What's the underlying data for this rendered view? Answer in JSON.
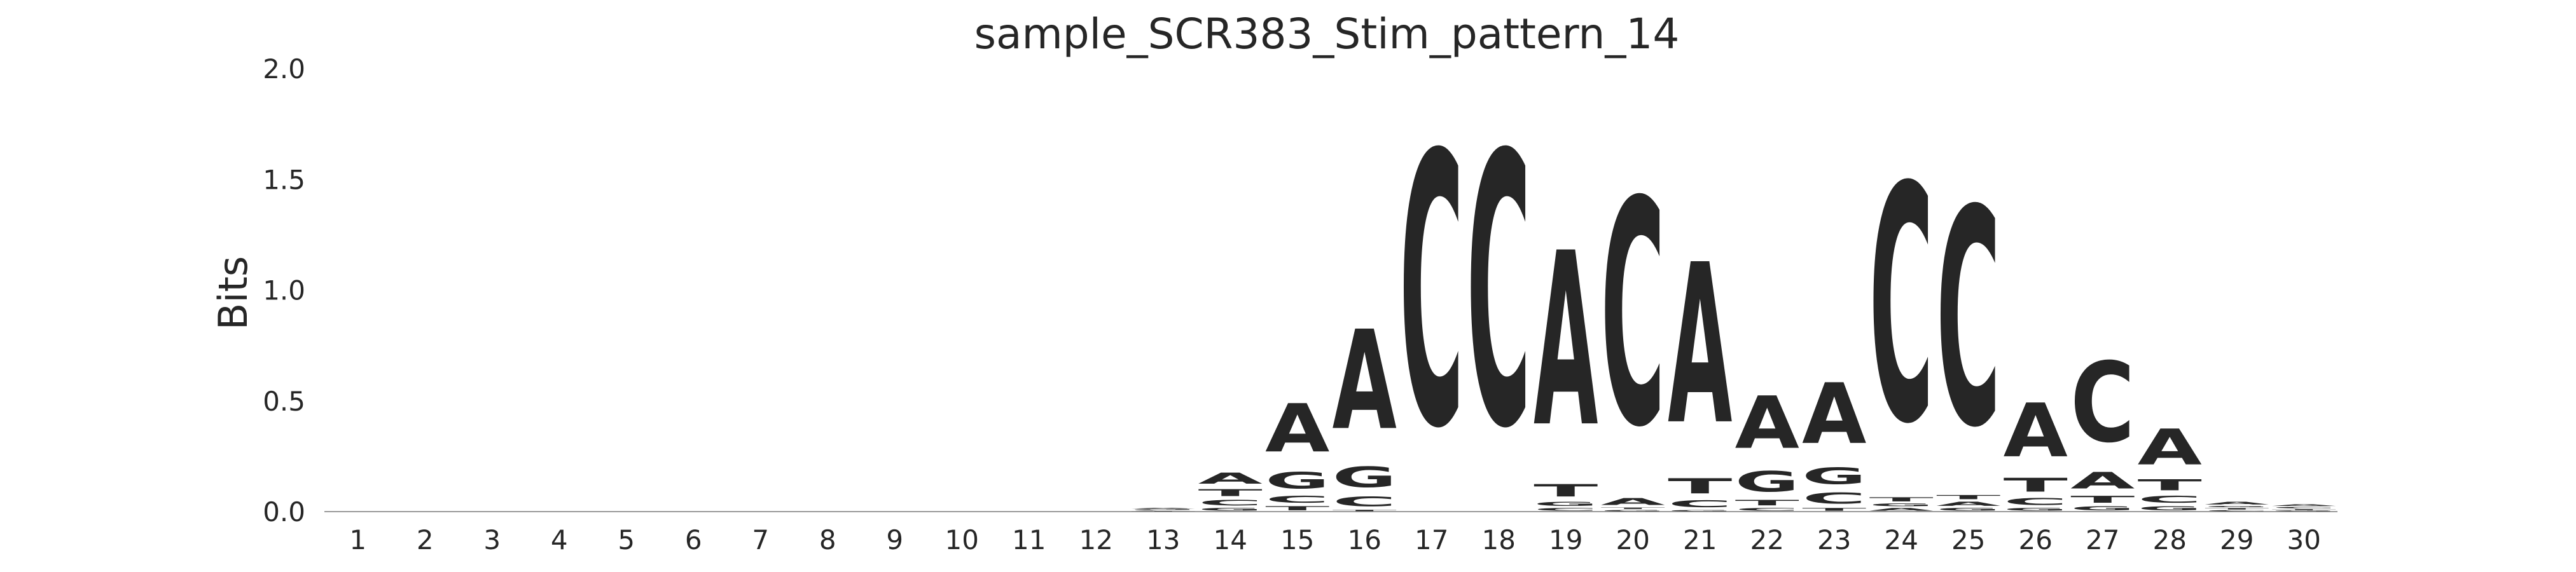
{
  "chart_data": {
    "type": "sequence-logo",
    "title": "sample_SCR383_Stim_pattern_14",
    "xlabel": "",
    "ylabel": "Bits",
    "ylim": [
      0,
      2.0
    ],
    "y_ticks": [
      "0.0",
      "0.5",
      "1.0",
      "1.5",
      "2.0"
    ],
    "grid": false,
    "colors": {
      "A": "#008000",
      "C": "#0000ff",
      "G": "#ffa500",
      "T": "#ff0000"
    },
    "positions": [
      {
        "pos": "1",
        "stack": []
      },
      {
        "pos": "2",
        "stack": []
      },
      {
        "pos": "3",
        "stack": []
      },
      {
        "pos": "4",
        "stack": []
      },
      {
        "pos": "5",
        "stack": []
      },
      {
        "pos": "6",
        "stack": []
      },
      {
        "pos": "7",
        "stack": []
      },
      {
        "pos": "8",
        "stack": []
      },
      {
        "pos": "9",
        "stack": []
      },
      {
        "pos": "10",
        "stack": []
      },
      {
        "pos": "11",
        "stack": []
      },
      {
        "pos": "12",
        "stack": []
      },
      {
        "pos": "13",
        "stack": [
          {
            "base": "T",
            "bits": 0.003
          },
          {
            "base": "C",
            "bits": 0.004
          },
          {
            "base": "G",
            "bits": 0.005
          },
          {
            "base": "A",
            "bits": 0.006
          }
        ]
      },
      {
        "pos": "14",
        "stack": [
          {
            "base": "G",
            "bits": 0.02
          },
          {
            "base": "C",
            "bits": 0.04
          },
          {
            "base": "T",
            "bits": 0.05
          },
          {
            "base": "A",
            "bits": 0.08
          }
        ]
      },
      {
        "pos": "15",
        "stack": [
          {
            "base": "T",
            "bits": 0.03
          },
          {
            "base": "C",
            "bits": 0.05
          },
          {
            "base": "G",
            "bits": 0.12
          },
          {
            "base": "A",
            "bits": 0.35
          }
        ]
      },
      {
        "pos": "16",
        "stack": [
          {
            "base": "T",
            "bits": 0.01
          },
          {
            "base": "C",
            "bits": 0.07
          },
          {
            "base": "G",
            "bits": 0.15
          },
          {
            "base": "A",
            "bits": 0.72
          }
        ]
      },
      {
        "pos": "17",
        "stack": [
          {
            "base": "C",
            "bits": 1.97
          }
        ]
      },
      {
        "pos": "18",
        "stack": [
          {
            "base": "C",
            "bits": 1.97
          }
        ]
      },
      {
        "pos": "19",
        "stack": [
          {
            "base": "C",
            "bits": 0.02
          },
          {
            "base": "G",
            "bits": 0.03
          },
          {
            "base": "T",
            "bits": 0.09
          },
          {
            "base": "A",
            "bits": 1.26
          }
        ]
      },
      {
        "pos": "20",
        "stack": [
          {
            "base": "G",
            "bits": 0.01
          },
          {
            "base": "T",
            "bits": 0.01
          },
          {
            "base": "A",
            "bits": 0.05
          },
          {
            "base": "C",
            "bits": 1.63
          }
        ]
      },
      {
        "pos": "21",
        "stack": [
          {
            "base": "G",
            "bits": 0.01
          },
          {
            "base": "C",
            "bits": 0.05
          },
          {
            "base": "T",
            "bits": 0.11
          },
          {
            "base": "A",
            "bits": 1.16
          }
        ]
      },
      {
        "pos": "22",
        "stack": [
          {
            "base": "C",
            "bits": 0.02
          },
          {
            "base": "T",
            "bits": 0.04
          },
          {
            "base": "G",
            "bits": 0.15
          },
          {
            "base": "A",
            "bits": 0.38
          }
        ]
      },
      {
        "pos": "23",
        "stack": [
          {
            "base": "T",
            "bits": 0.02
          },
          {
            "base": "C",
            "bits": 0.08
          },
          {
            "base": "G",
            "bits": 0.12
          },
          {
            "base": "A",
            "bits": 0.44
          }
        ]
      },
      {
        "pos": "24",
        "stack": [
          {
            "base": "A",
            "bits": 0.02
          },
          {
            "base": "G",
            "bits": 0.02
          },
          {
            "base": "T",
            "bits": 0.03
          },
          {
            "base": "C",
            "bits": 1.71
          }
        ]
      },
      {
        "pos": "25",
        "stack": [
          {
            "base": "G",
            "bits": 0.02
          },
          {
            "base": "A",
            "bits": 0.03
          },
          {
            "base": "T",
            "bits": 0.03
          },
          {
            "base": "C",
            "bits": 1.57
          }
        ]
      },
      {
        "pos": "26",
        "stack": [
          {
            "base": "G",
            "bits": 0.02
          },
          {
            "base": "C",
            "bits": 0.05
          },
          {
            "base": "T",
            "bits": 0.1
          },
          {
            "base": "A",
            "bits": 0.39
          }
        ]
      },
      {
        "pos": "27",
        "stack": [
          {
            "base": "G",
            "bits": 0.03
          },
          {
            "base": "T",
            "bits": 0.05
          },
          {
            "base": "A",
            "bits": 0.12
          },
          {
            "base": "C",
            "bits": 0.58
          }
        ]
      },
      {
        "pos": "28",
        "stack": [
          {
            "base": "G",
            "bits": 0.03
          },
          {
            "base": "C",
            "bits": 0.05
          },
          {
            "base": "T",
            "bits": 0.08
          },
          {
            "base": "A",
            "bits": 0.26
          }
        ]
      },
      {
        "pos": "29",
        "stack": [
          {
            "base": "C",
            "bits": 0.008
          },
          {
            "base": "T",
            "bits": 0.01
          },
          {
            "base": "G",
            "bits": 0.01
          },
          {
            "base": "A",
            "bits": 0.02
          }
        ]
      },
      {
        "pos": "30",
        "stack": [
          {
            "base": "G",
            "bits": 0.005
          },
          {
            "base": "T",
            "bits": 0.008
          },
          {
            "base": "C",
            "bits": 0.01
          },
          {
            "base": "A",
            "bits": 0.012
          }
        ]
      }
    ]
  }
}
